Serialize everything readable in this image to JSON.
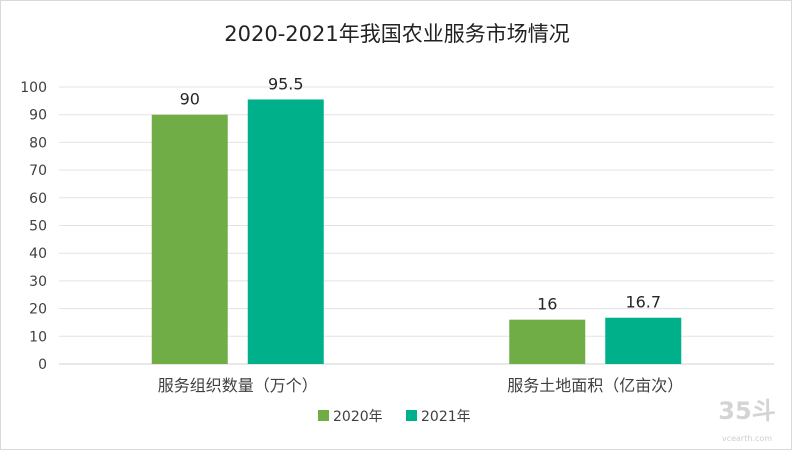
{
  "chart_data": {
    "type": "bar",
    "title": "2020-2021年我国农业服务市场情况",
    "categories": [
      "服务组织数量（万个）",
      "服务土地面积（亿亩次）"
    ],
    "series": [
      {
        "name": "2020年",
        "values": [
          90,
          16
        ],
        "color": "#70ad47"
      },
      {
        "name": "2021年",
        "values": [
          95.5,
          16.7
        ],
        "color": "#00b08a"
      }
    ],
    "ylim": [
      0,
      100
    ],
    "yticks": [
      0,
      10,
      20,
      30,
      40,
      50,
      60,
      70,
      80,
      90,
      100
    ],
    "grid": true,
    "legend": "bottom"
  },
  "watermark": {
    "main": "35斗",
    "sub": "vcearth.com"
  }
}
